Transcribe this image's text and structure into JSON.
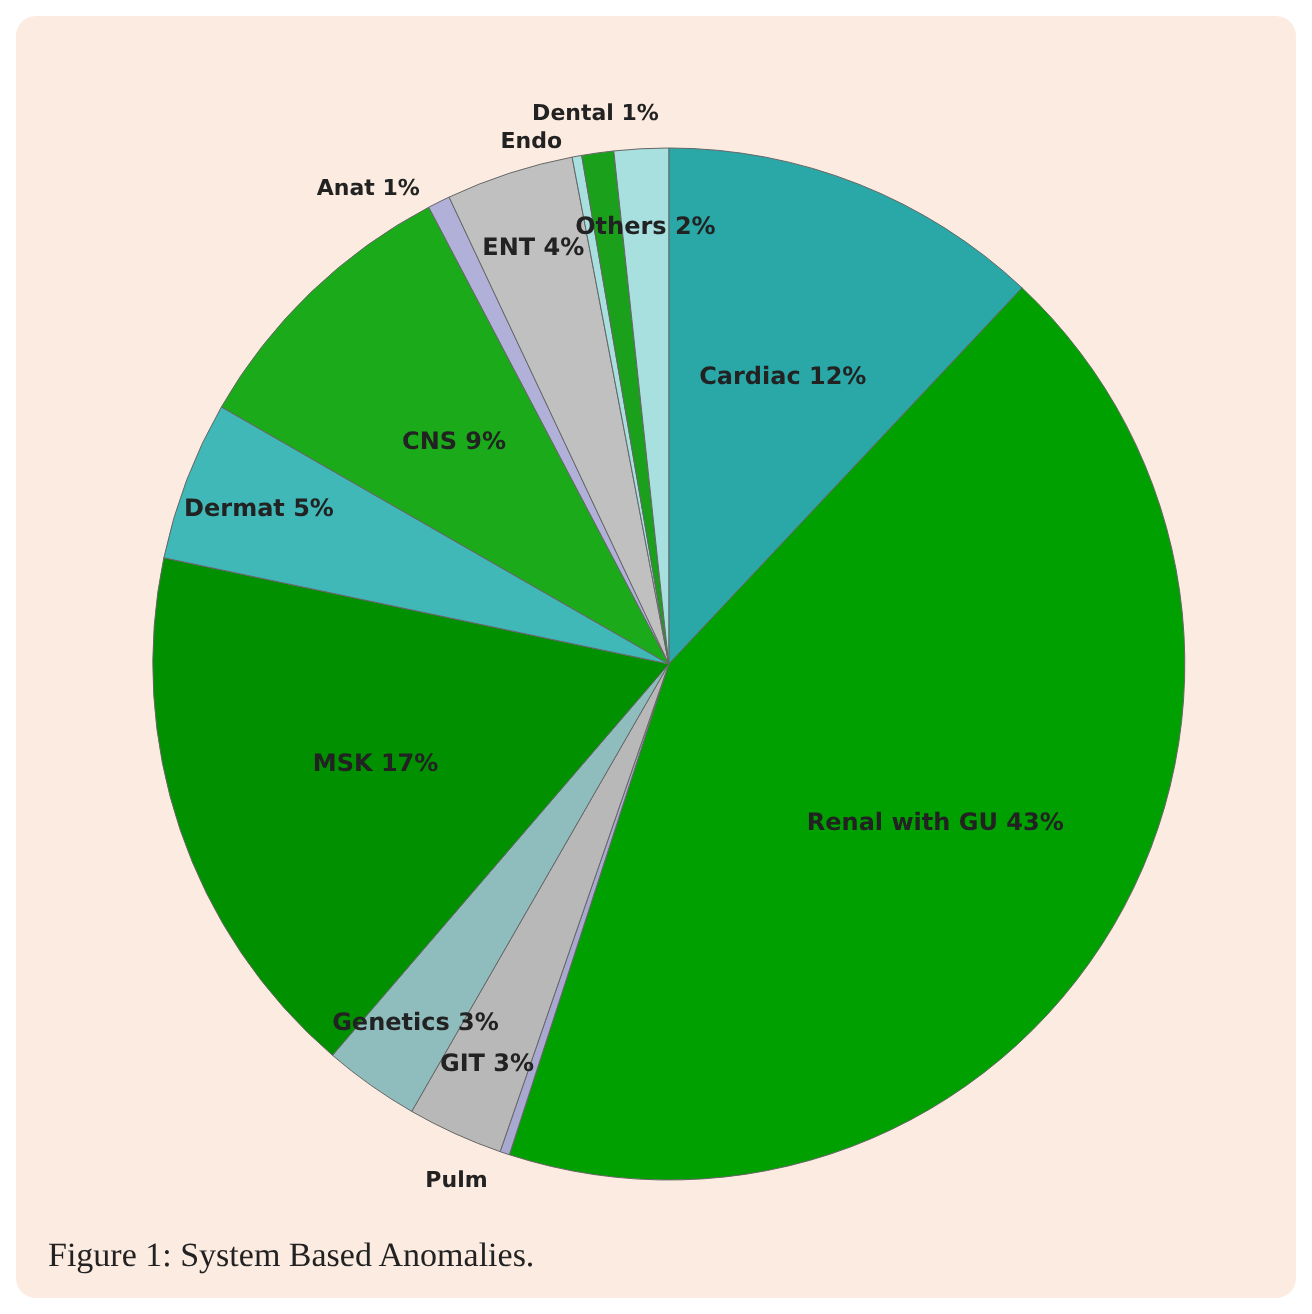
{
  "chart_data": {
    "type": "pie",
    "categories": [
      "Cardiac",
      "Renal with GU",
      "Pulm",
      "GIT",
      "Genetics",
      "MSK",
      "Dermat",
      "CNS",
      "Anat",
      "ENT",
      "Endo",
      "Dental",
      "Others"
    ],
    "values": [
      12,
      43,
      0.3,
      3,
      3,
      17,
      5,
      9,
      0.7,
      4,
      0.3,
      1,
      1.7
    ],
    "value_labels": [
      "12%",
      "43%",
      null,
      "3%",
      "3%",
      "17%",
      "5%",
      "9%",
      "1%",
      "4%",
      null,
      "1%",
      "2%"
    ],
    "colors": [
      "#2aa8a8",
      "#00a000",
      "#a8a8d0",
      "#b8b8b8",
      "#8fbcbc",
      "#009000",
      "#40b8b8",
      "#1aaa1a",
      "#b0b0d8",
      "#c0c0c0",
      "#a8e0e0",
      "#1aa01a",
      "#a8e0e0"
    ],
    "annotations": [
      "Figure 1: System Based Anomalies."
    ]
  }
}
